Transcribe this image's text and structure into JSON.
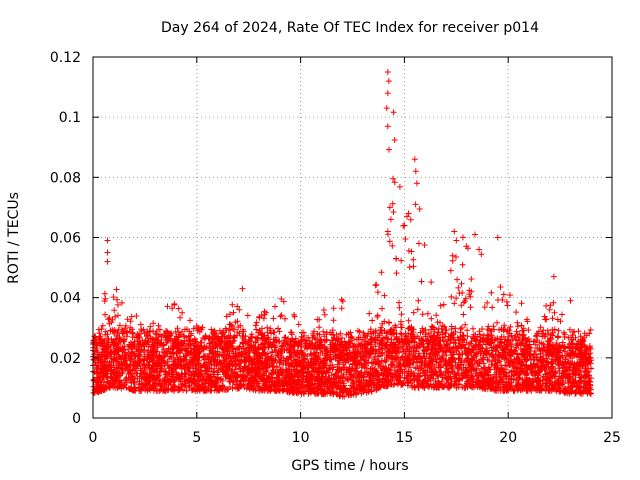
{
  "chart_data": {
    "type": "scatter",
    "title": "Day 264 of 2024, Rate Of TEC Index for receiver p014",
    "xlabel": "GPS time / hours",
    "ylabel": "ROTI / TECUs",
    "xlim": [
      0,
      25
    ],
    "ylim": [
      0,
      0.12
    ],
    "xticks": [
      "0",
      "5",
      "10",
      "15",
      "20",
      "25"
    ],
    "yticks": [
      "0",
      "0.02",
      "0.04",
      "0.06",
      "0.08",
      "0.1",
      "0.12"
    ],
    "grid": true,
    "marker": "+",
    "series_color": "#ff0000",
    "x_range_of_data": [
      0,
      24
    ],
    "envelope": [
      {
        "x": 0.0,
        "base": 0.008,
        "top": 0.024
      },
      {
        "x": 0.5,
        "base": 0.009,
        "top": 0.035
      },
      {
        "x": 0.7,
        "base": 0.01,
        "top": 0.059
      },
      {
        "x": 1.2,
        "base": 0.01,
        "top": 0.042
      },
      {
        "x": 2.0,
        "base": 0.009,
        "top": 0.035
      },
      {
        "x": 3.0,
        "base": 0.009,
        "top": 0.033
      },
      {
        "x": 3.8,
        "base": 0.009,
        "top": 0.039
      },
      {
        "x": 5.0,
        "base": 0.009,
        "top": 0.033
      },
      {
        "x": 6.0,
        "base": 0.009,
        "top": 0.028
      },
      {
        "x": 7.2,
        "base": 0.01,
        "top": 0.045
      },
      {
        "x": 8.0,
        "base": 0.009,
        "top": 0.034
      },
      {
        "x": 9.0,
        "base": 0.009,
        "top": 0.045
      },
      {
        "x": 10.0,
        "base": 0.008,
        "top": 0.03
      },
      {
        "x": 11.0,
        "base": 0.008,
        "top": 0.036
      },
      {
        "x": 12.0,
        "base": 0.007,
        "top": 0.04
      },
      {
        "x": 13.0,
        "base": 0.008,
        "top": 0.028
      },
      {
        "x": 14.0,
        "base": 0.01,
        "top": 0.055
      },
      {
        "x": 14.3,
        "base": 0.011,
        "top": 0.115
      },
      {
        "x": 15.0,
        "base": 0.011,
        "top": 0.068
      },
      {
        "x": 15.5,
        "base": 0.01,
        "top": 0.086
      },
      {
        "x": 16.5,
        "base": 0.01,
        "top": 0.035
      },
      {
        "x": 17.5,
        "base": 0.01,
        "top": 0.062
      },
      {
        "x": 18.5,
        "base": 0.01,
        "top": 0.061
      },
      {
        "x": 19.5,
        "base": 0.009,
        "top": 0.045
      },
      {
        "x": 20.5,
        "base": 0.009,
        "top": 0.04
      },
      {
        "x": 21.5,
        "base": 0.009,
        "top": 0.03
      },
      {
        "x": 22.2,
        "base": 0.009,
        "top": 0.047
      },
      {
        "x": 23.0,
        "base": 0.008,
        "top": 0.03
      },
      {
        "x": 24.0,
        "base": 0.008,
        "top": 0.025
      }
    ],
    "outliers": [
      {
        "x": 0.7,
        "y": 0.059
      },
      {
        "x": 0.7,
        "y": 0.055
      },
      {
        "x": 0.7,
        "y": 0.052
      },
      {
        "x": 7.2,
        "y": 0.043
      },
      {
        "x": 14.2,
        "y": 0.115
      },
      {
        "x": 14.25,
        "y": 0.112
      },
      {
        "x": 14.2,
        "y": 0.108
      },
      {
        "x": 14.15,
        "y": 0.103
      },
      {
        "x": 14.2,
        "y": 0.097
      },
      {
        "x": 14.3,
        "y": 0.07
      },
      {
        "x": 14.35,
        "y": 0.066
      },
      {
        "x": 14.2,
        "y": 0.062
      },
      {
        "x": 15.5,
        "y": 0.086
      },
      {
        "x": 15.55,
        "y": 0.082
      },
      {
        "x": 15.6,
        "y": 0.078
      },
      {
        "x": 15.2,
        "y": 0.068
      },
      {
        "x": 15.0,
        "y": 0.064
      },
      {
        "x": 15.7,
        "y": 0.058
      },
      {
        "x": 17.4,
        "y": 0.062
      },
      {
        "x": 17.5,
        "y": 0.059
      },
      {
        "x": 18.4,
        "y": 0.061
      },
      {
        "x": 18.6,
        "y": 0.056
      },
      {
        "x": 19.5,
        "y": 0.06
      },
      {
        "x": 22.2,
        "y": 0.047
      },
      {
        "x": 23.0,
        "y": 0.039
      }
    ]
  }
}
